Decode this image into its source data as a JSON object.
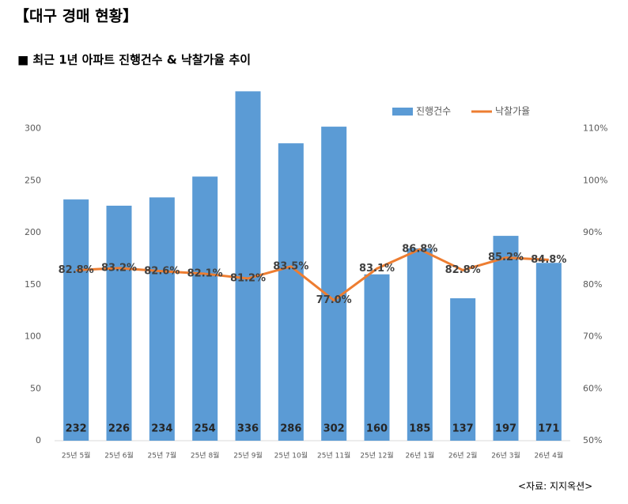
{
  "header": {
    "title": "【대구 경매 현황】"
  },
  "chart_data": {
    "type": "combo",
    "title": "■ 최근 1년 아파트 진행건수 & 낙찰가율 추이",
    "categories": [
      "25년 5월",
      "25년 6월",
      "25년 7월",
      "25년 8월",
      "25년 9월",
      "25년 10월",
      "25년 11월",
      "25년 12월",
      "26년 1월",
      "26년 2월",
      "26년 3월",
      "26년 4월"
    ],
    "series": [
      {
        "name": "진행건수",
        "type": "bar",
        "color": "#5b9bd5",
        "values": [
          232,
          226,
          234,
          254,
          336,
          286,
          302,
          160,
          185,
          137,
          197,
          171
        ]
      },
      {
        "name": "낙찰가율",
        "type": "line",
        "axis": "y2",
        "color": "#ed7d31",
        "values": [
          82.8,
          83.2,
          82.6,
          82.1,
          81.2,
          83.5,
          77.0,
          83.1,
          86.8,
          82.8,
          85.2,
          84.8
        ],
        "value_labels": [
          "82.8%",
          "83.2%",
          "82.6%",
          "82.1%",
          "81.2%",
          "83.5%",
          "77.0%",
          "83.1%",
          "86.8%",
          "82.8%",
          "85.2%",
          "84.8%"
        ]
      }
    ],
    "ylim": [
      0,
      350
    ],
    "yticks": [
      0,
      50,
      100,
      150,
      200,
      250,
      300
    ],
    "y2lim": [
      50,
      120
    ],
    "y2ticks": [
      {
        "value": 50,
        "label": "50%"
      },
      {
        "value": 60,
        "label": "60%"
      },
      {
        "value": 70,
        "label": "70%"
      },
      {
        "value": 80,
        "label": "80%"
      },
      {
        "value": 90,
        "label": "90%"
      },
      {
        "value": 100,
        "label": "100%"
      },
      {
        "value": 110,
        "label": "110%"
      }
    ],
    "grid": false,
    "legend": "top-right"
  },
  "source": "<자료: 지지옥션>"
}
